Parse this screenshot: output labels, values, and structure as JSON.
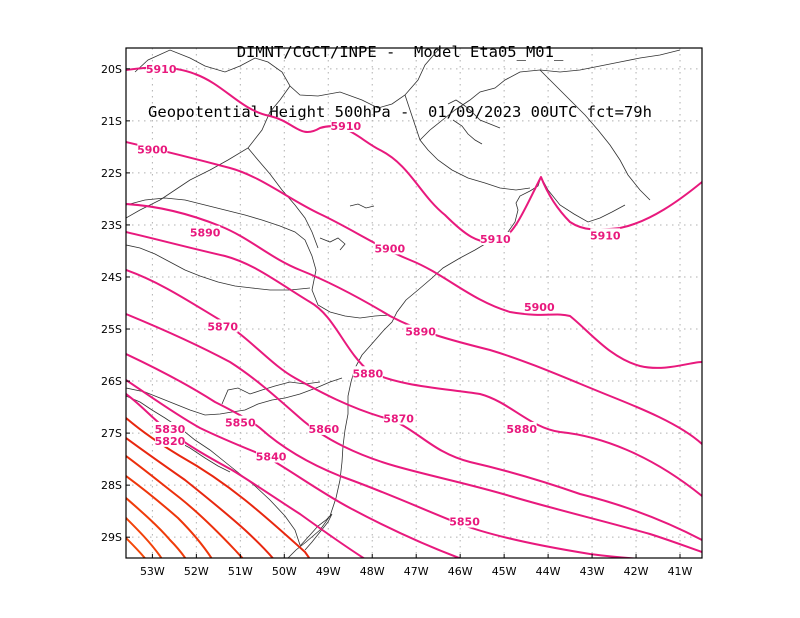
{
  "title": {
    "line1": "DIMNT/CGCT/INPE -  Model Eta05_M01_",
    "line2": "Geopotential Height 500hPa -  01/09/2023 00UTC fct=79h"
  },
  "axes": {
    "lon_labels": [
      "53W",
      "52W",
      "51W",
      "50W",
      "49W",
      "48W",
      "47W",
      "46W",
      "45W",
      "44W",
      "43W",
      "42W",
      "41W"
    ],
    "lat_labels": [
      "20S",
      "21S",
      "22S",
      "23S",
      "24S",
      "25S",
      "26S",
      "27S",
      "28S",
      "29S"
    ]
  },
  "colors": {
    "magenta": "#e8197d",
    "red": "#e8270f",
    "orange_red": "#f03c0a"
  },
  "contour_labels": [
    {
      "id": "5910a",
      "text": "5910",
      "lon": -52.8,
      "lat": -20.0,
      "color": "#e8197d"
    },
    {
      "id": "5910b",
      "text": "5910",
      "lon": -48.6,
      "lat": -21.1,
      "color": "#e8197d"
    },
    {
      "id": "5910c",
      "text": "5910",
      "lon": -45.2,
      "lat": -23.27,
      "color": "#e8197d"
    },
    {
      "id": "5910d",
      "text": "5910",
      "lon": -42.7,
      "lat": -23.2,
      "color": "#e8197d"
    },
    {
      "id": "5900e",
      "text": "5900",
      "lon": -53.0,
      "lat": -21.55,
      "color": "#e8197d"
    },
    {
      "id": "5900a",
      "text": "5900",
      "lon": -47.6,
      "lat": -23.45,
      "color": "#e8197d"
    },
    {
      "id": "5900b",
      "text": "5900",
      "lon": -44.2,
      "lat": -24.58,
      "color": "#e8197d"
    },
    {
      "id": "5890a",
      "text": "5890",
      "lon": -51.8,
      "lat": -23.15,
      "color": "#e8197d"
    },
    {
      "id": "5890b",
      "text": "5890",
      "lon": -46.9,
      "lat": -25.05,
      "color": "#e8197d"
    },
    {
      "id": "5880a",
      "text": "5880",
      "lon": -48.1,
      "lat": -25.85,
      "color": "#e8197d"
    },
    {
      "id": "5880b",
      "text": "5880",
      "lon": -44.6,
      "lat": -26.92,
      "color": "#e8197d"
    },
    {
      "id": "5870a",
      "text": "5870",
      "lon": -51.4,
      "lat": -24.95,
      "color": "#e8197d"
    },
    {
      "id": "5870b",
      "text": "5870",
      "lon": -47.4,
      "lat": -26.72,
      "color": "#e8197d"
    },
    {
      "id": "5860",
      "text": "5860",
      "lon": -49.1,
      "lat": -26.92,
      "color": "#e8197d"
    },
    {
      "id": "5850a",
      "text": "5850",
      "lon": -51.0,
      "lat": -26.8,
      "color": "#e8197d"
    },
    {
      "id": "5850b",
      "text": "5850",
      "lon": -45.9,
      "lat": -28.7,
      "color": "#e8197d"
    },
    {
      "id": "5840",
      "text": "5840",
      "lon": -50.3,
      "lat": -27.45,
      "color": "#e8197d"
    },
    {
      "id": "5830",
      "text": "5830",
      "lon": -52.6,
      "lat": -26.92,
      "color": "#e8197d"
    },
    {
      "id": "5820",
      "text": "5820",
      "lon": -52.6,
      "lat": -27.15,
      "color": "#e8197d"
    }
  ]
}
